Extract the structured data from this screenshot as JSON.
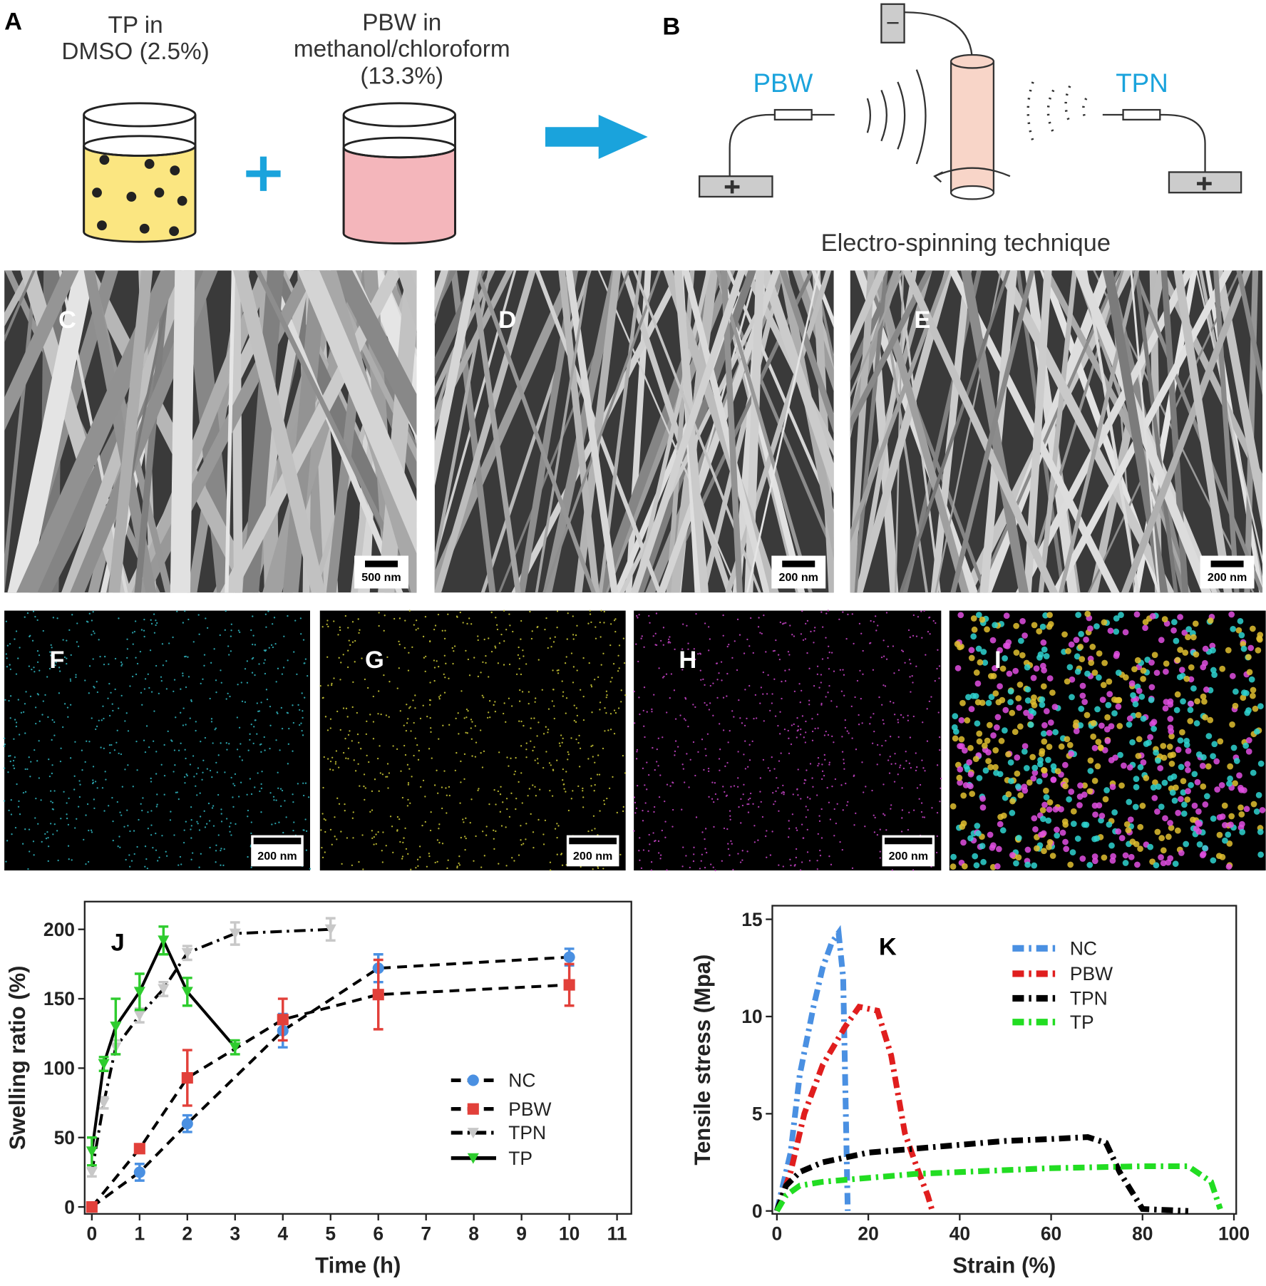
{
  "panels": {
    "A": {
      "label": "A",
      "tp_lines": [
        "TP in",
        "DMSO (2.5%)"
      ],
      "pbw_lines": [
        "PBW in",
        "methanol/chloroform",
        "(13.3%)"
      ]
    },
    "B": {
      "label": "B",
      "pbw": "PBW",
      "tpn": "TPN",
      "caption": "Electro-spinning technique"
    },
    "sem": [
      {
        "label": "C",
        "scale": "500 nm"
      },
      {
        "label": "D",
        "scale": "200 nm"
      },
      {
        "label": "E",
        "scale": "200 nm"
      }
    ],
    "eds": [
      {
        "label": "F",
        "scale": "200 nm"
      },
      {
        "label": "G",
        "scale": "200 nm"
      },
      {
        "label": "H",
        "scale": "200 nm"
      },
      {
        "label": "I"
      }
    ]
  },
  "chart_data": [
    {
      "type": "line",
      "panel": "J",
      "xlabel": "Time (h)",
      "ylabel": "Swelling ratio (%)",
      "xlim": [
        -0.15,
        11.3
      ],
      "ylim": [
        -5,
        220
      ],
      "xticks": [
        0,
        1,
        2,
        3,
        4,
        5,
        6,
        7,
        8,
        9,
        10,
        11
      ],
      "yticks": [
        0,
        50,
        100,
        150,
        200
      ],
      "series": [
        {
          "name": "NC",
          "color": "#4a90e2",
          "line_color": "#000000",
          "line_dash": "dash",
          "marker": "circle",
          "x": [
            0,
            1,
            2,
            4,
            6,
            10
          ],
          "values": [
            0,
            25,
            60,
            127,
            172,
            180
          ],
          "errors": [
            3,
            6,
            6,
            12,
            10,
            6
          ]
        },
        {
          "name": "PBW",
          "color": "#e2403a",
          "line_color": "#000000",
          "line_dash": "dash",
          "marker": "square",
          "x": [
            0,
            1,
            2,
            4,
            6,
            10
          ],
          "values": [
            0,
            42,
            93,
            135,
            153,
            160
          ],
          "errors": [
            2,
            3,
            20,
            15,
            25,
            15
          ]
        },
        {
          "name": "TPN",
          "color": "#c8c8c8",
          "line_color": "#000000",
          "line_dash": "dashdot",
          "marker": "triangle",
          "x": [
            0,
            0.25,
            0.5,
            1,
            1.5,
            2,
            3,
            5
          ],
          "values": [
            25,
            75,
            115,
            138,
            157,
            183,
            197,
            200
          ],
          "errors": [
            3,
            4,
            5,
            5,
            5,
            5,
            8,
            8
          ]
        },
        {
          "name": "TP",
          "color": "#2ecc2e",
          "line_color": "#000000",
          "line_dash": "solid",
          "marker": "triangle",
          "x": [
            0,
            0.25,
            0.5,
            1,
            1.5,
            2,
            3
          ],
          "values": [
            40,
            103,
            130,
            155,
            192,
            155,
            115
          ],
          "errors": [
            10,
            5,
            20,
            13,
            10,
            10,
            5
          ]
        }
      ]
    },
    {
      "type": "line",
      "panel": "K",
      "xlabel": "Strain (%)",
      "ylabel": "Tensile stress (Mpa)",
      "xlim": [
        -1,
        100.5
      ],
      "ylim": [
        -0.15,
        15.7
      ],
      "xticks": [
        0,
        20,
        40,
        60,
        80,
        100
      ],
      "yticks": [
        0,
        5,
        10,
        15
      ],
      "series": [
        {
          "name": "NC",
          "color": "#4a90e2",
          "line_dash": "dashdot",
          "x": [
            0,
            3,
            5,
            8,
            10,
            12,
            13.5,
            14.5,
            15,
            15.5
          ],
          "values": [
            0,
            3,
            7,
            10.5,
            12.5,
            13.8,
            14.3,
            12,
            6,
            0
          ]
        },
        {
          "name": "PBW",
          "color": "#e01e1e",
          "line_dash": "dashdot",
          "x": [
            0,
            3,
            6,
            10,
            15,
            18,
            22,
            25,
            28,
            31,
            33,
            34
          ],
          "values": [
            0,
            2,
            5,
            7.5,
            9.5,
            10.5,
            10.3,
            8,
            4,
            2,
            0.8,
            0
          ]
        },
        {
          "name": "TPN",
          "color": "#000000",
          "line_dash": "dashdot",
          "x": [
            0,
            2,
            5,
            10,
            20,
            30,
            40,
            50,
            60,
            68,
            72,
            75,
            80,
            90
          ],
          "values": [
            0,
            1.3,
            2,
            2.5,
            3,
            3.2,
            3.4,
            3.6,
            3.7,
            3.8,
            3.5,
            2,
            0.1,
            0
          ]
        },
        {
          "name": "TP",
          "color": "#22dd22",
          "line_dash": "dashdot",
          "x": [
            0,
            2,
            5,
            10,
            20,
            30,
            40,
            60,
            80,
            90,
            95,
            97
          ],
          "values": [
            0,
            0.8,
            1.3,
            1.5,
            1.7,
            1.9,
            2.0,
            2.2,
            2.3,
            2.3,
            1.5,
            0.1
          ]
        }
      ]
    }
  ]
}
